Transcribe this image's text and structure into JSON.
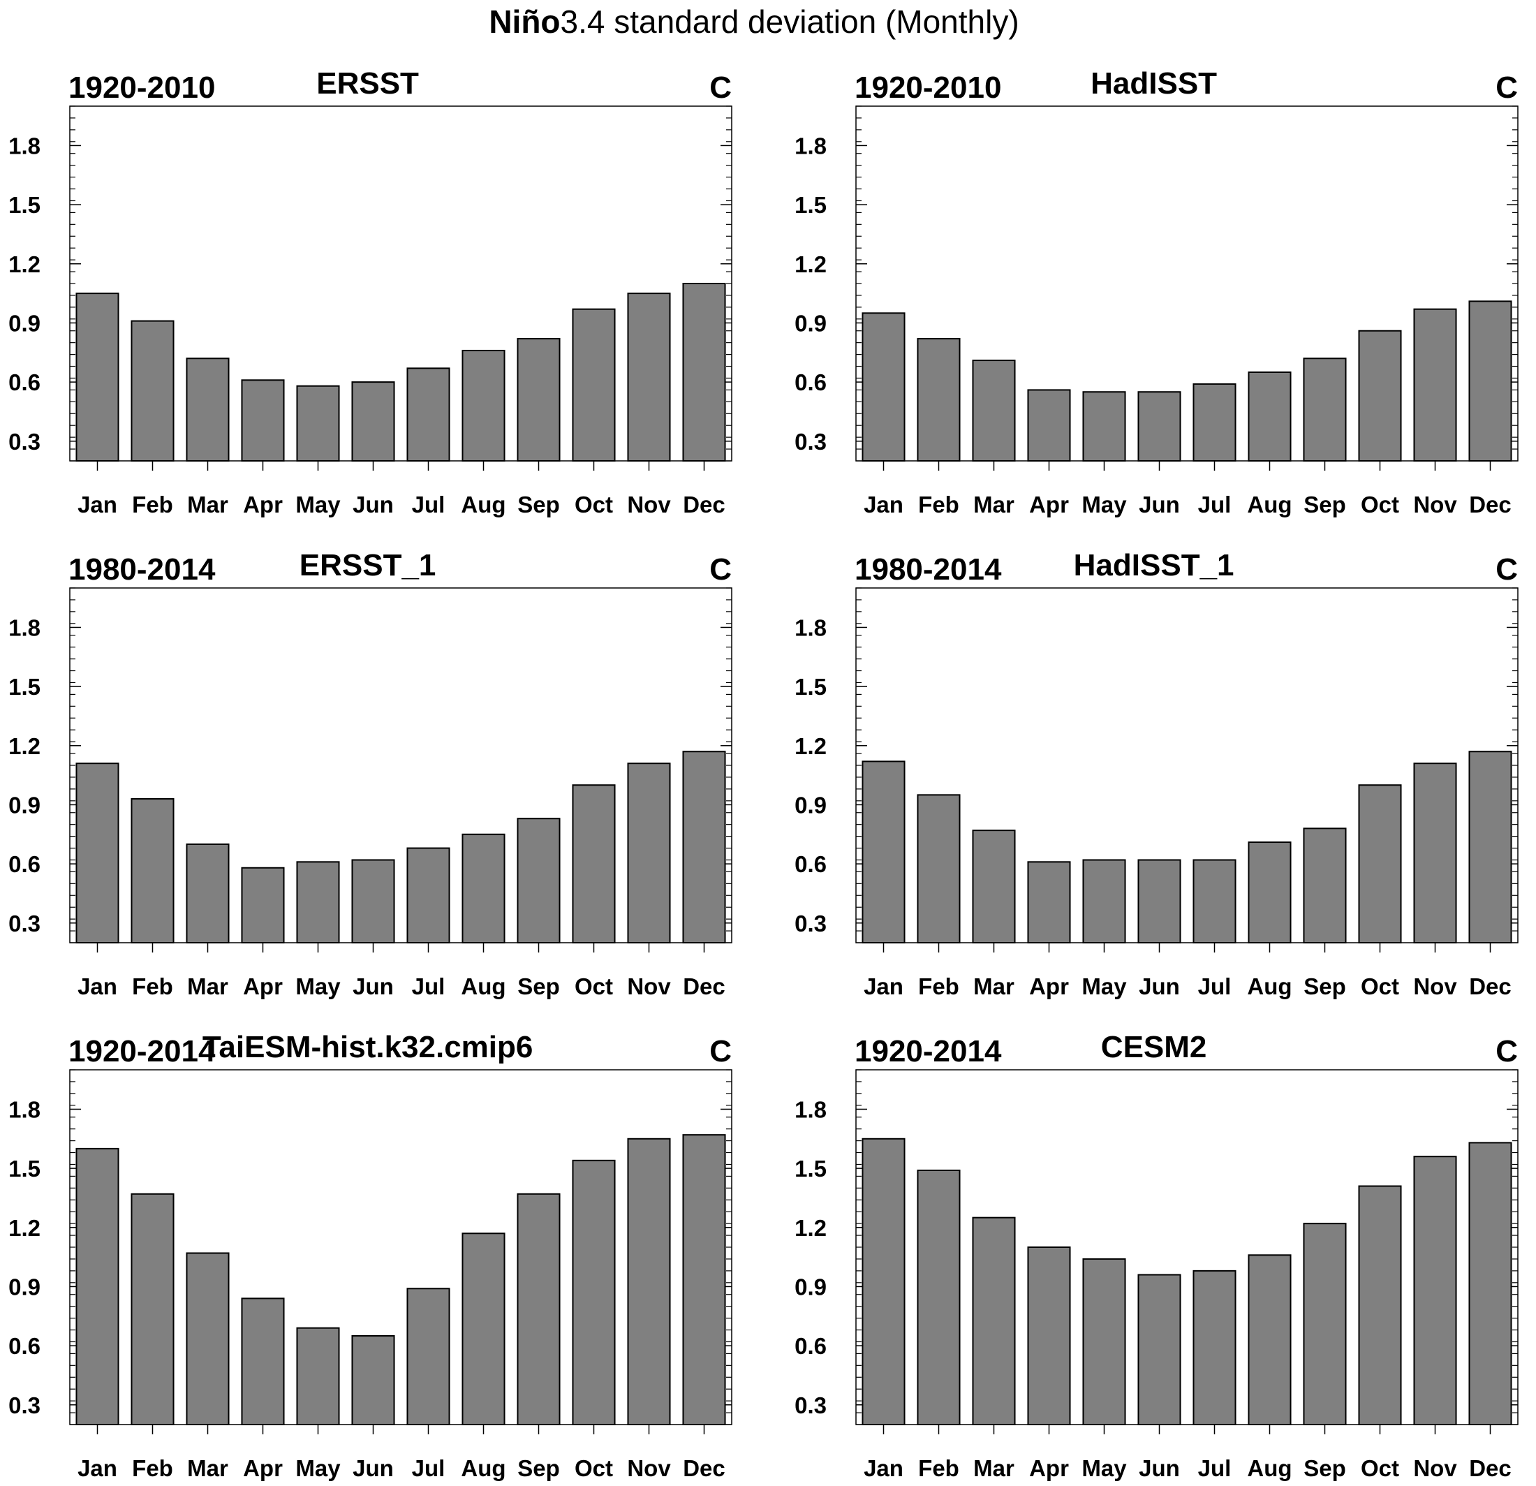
{
  "title": {
    "bold_part": "Niño",
    "regular_part": "3.4 standard deviation (Monthly)"
  },
  "chart_data": [
    {
      "type": "bar",
      "left_label": "1920-2010",
      "center_label": "ERSST",
      "right_label": "C",
      "categories": [
        "Jan",
        "Feb",
        "Mar",
        "Apr",
        "May",
        "Jun",
        "Jul",
        "Aug",
        "Sep",
        "Oct",
        "Nov",
        "Dec"
      ],
      "values": [
        1.05,
        0.91,
        0.72,
        0.61,
        0.58,
        0.6,
        0.67,
        0.76,
        0.82,
        0.97,
        1.05,
        1.1
      ],
      "ylim": [
        0.2,
        2.0
      ],
      "yticks": [
        "0.3",
        "0.6",
        "0.9",
        "1.2",
        "1.5",
        "1.8"
      ]
    },
    {
      "type": "bar",
      "left_label": "1920-2010",
      "center_label": "HadISST",
      "right_label": "C",
      "categories": [
        "Jan",
        "Feb",
        "Mar",
        "Apr",
        "May",
        "Jun",
        "Jul",
        "Aug",
        "Sep",
        "Oct",
        "Nov",
        "Dec"
      ],
      "values": [
        0.95,
        0.82,
        0.71,
        0.56,
        0.55,
        0.55,
        0.59,
        0.65,
        0.72,
        0.86,
        0.97,
        1.01
      ],
      "ylim": [
        0.2,
        2.0
      ],
      "yticks": [
        "0.3",
        "0.6",
        "0.9",
        "1.2",
        "1.5",
        "1.8"
      ]
    },
    {
      "type": "bar",
      "left_label": "1980-2014",
      "center_label": "ERSST_1",
      "right_label": "C",
      "categories": [
        "Jan",
        "Feb",
        "Mar",
        "Apr",
        "May",
        "Jun",
        "Jul",
        "Aug",
        "Sep",
        "Oct",
        "Nov",
        "Dec"
      ],
      "values": [
        1.11,
        0.93,
        0.7,
        0.58,
        0.61,
        0.62,
        0.68,
        0.75,
        0.83,
        1.0,
        1.11,
        1.17
      ],
      "ylim": [
        0.2,
        2.0
      ],
      "yticks": [
        "0.3",
        "0.6",
        "0.9",
        "1.2",
        "1.5",
        "1.8"
      ]
    },
    {
      "type": "bar",
      "left_label": "1980-2014",
      "center_label": "HadISST_1",
      "right_label": "C",
      "categories": [
        "Jan",
        "Feb",
        "Mar",
        "Apr",
        "May",
        "Jun",
        "Jul",
        "Aug",
        "Sep",
        "Oct",
        "Nov",
        "Dec"
      ],
      "values": [
        1.12,
        0.95,
        0.77,
        0.61,
        0.62,
        0.62,
        0.62,
        0.71,
        0.78,
        1.0,
        1.11,
        1.17
      ],
      "ylim": [
        0.2,
        2.0
      ],
      "yticks": [
        "0.3",
        "0.6",
        "0.9",
        "1.2",
        "1.5",
        "1.8"
      ]
    },
    {
      "type": "bar",
      "left_label": "1920-2014",
      "center_label": "TaiESM-hist.k32.cmip6",
      "right_label": "C",
      "categories": [
        "Jan",
        "Feb",
        "Mar",
        "Apr",
        "May",
        "Jun",
        "Jul",
        "Aug",
        "Sep",
        "Oct",
        "Nov",
        "Dec"
      ],
      "values": [
        1.6,
        1.37,
        1.07,
        0.84,
        0.69,
        0.65,
        0.89,
        1.17,
        1.37,
        1.54,
        1.65,
        1.67
      ],
      "ylim": [
        0.2,
        2.0
      ],
      "yticks": [
        "0.3",
        "0.6",
        "0.9",
        "1.2",
        "1.5",
        "1.8"
      ]
    },
    {
      "type": "bar",
      "left_label": "1920-2014",
      "center_label": "CESM2",
      "right_label": "C",
      "categories": [
        "Jan",
        "Feb",
        "Mar",
        "Apr",
        "May",
        "Jun",
        "Jul",
        "Aug",
        "Sep",
        "Oct",
        "Nov",
        "Dec"
      ],
      "values": [
        1.65,
        1.49,
        1.25,
        1.1,
        1.04,
        0.96,
        0.98,
        1.06,
        1.22,
        1.41,
        1.56,
        1.63
      ],
      "ylim": [
        0.2,
        2.0
      ],
      "yticks": [
        "0.3",
        "0.6",
        "0.9",
        "1.2",
        "1.5",
        "1.8"
      ]
    }
  ],
  "colors": {
    "bar_fill": "#808080",
    "bar_stroke": "#000000",
    "axis": "#000000"
  }
}
